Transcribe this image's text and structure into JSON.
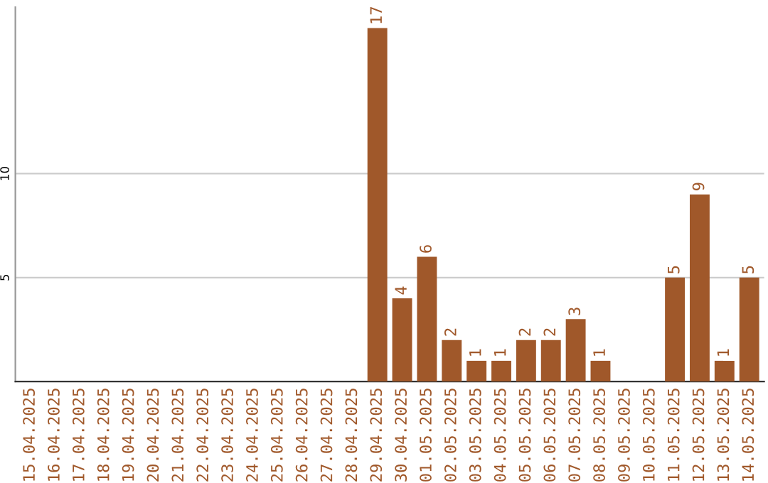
{
  "chart_data": {
    "type": "bar",
    "categories": [
      "15.04.2025",
      "16.04.2025",
      "17.04.2025",
      "18.04.2025",
      "19.04.2025",
      "20.04.2025",
      "21.04.2025",
      "22.04.2025",
      "23.04.2025",
      "24.04.2025",
      "25.04.2025",
      "26.04.2025",
      "27.04.2025",
      "28.04.2025",
      "29.04.2025",
      "30.04.2025",
      "01.05.2025",
      "02.05.2025",
      "03.05.2025",
      "04.05.2025",
      "05.05.2025",
      "06.05.2025",
      "07.05.2025",
      "08.05.2025",
      "09.05.2025",
      "10.05.2025",
      "11.05.2025",
      "12.05.2025",
      "13.05.2025",
      "14.05.2025"
    ],
    "values": [
      0,
      0,
      0,
      0,
      0,
      0,
      0,
      0,
      0,
      0,
      0,
      0,
      0,
      0,
      17,
      4,
      6,
      2,
      1,
      1,
      2,
      2,
      3,
      1,
      0,
      0,
      5,
      9,
      1,
      5
    ],
    "value_labels": [
      null,
      null,
      null,
      null,
      null,
      null,
      null,
      null,
      null,
      null,
      null,
      null,
      null,
      null,
      "17",
      "4",
      "6",
      "2",
      "1",
      "1",
      "2",
      "2",
      "3",
      "1",
      null,
      null,
      "5",
      "9",
      "1",
      "5"
    ],
    "color": "#a0582a",
    "ylim": [
      0,
      18
    ],
    "yticks": [
      5,
      10
    ],
    "grid": "y",
    "legend": false
  }
}
